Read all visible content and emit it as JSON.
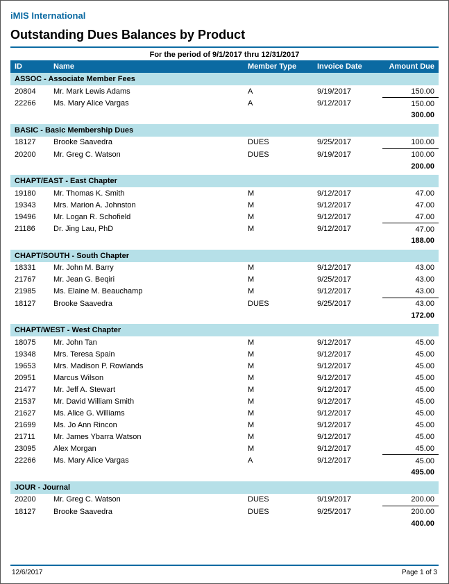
{
  "org_name": "iMIS International",
  "report_title": "Outstanding Dues Balances by Product",
  "period": "For the period of 9/1/2017 thru 12/31/2017",
  "columns": {
    "id": "ID",
    "name": "Name",
    "member_type": "Member Type",
    "invoice_date": "Invoice Date",
    "amount_due": "Amount Due"
  },
  "colors": {
    "accent": "#0b6aa2",
    "section_bg": "#b6e0e8",
    "text": "#000000",
    "background": "#ffffff"
  },
  "sections": [
    {
      "header": "ASSOC - Associate Member Fees",
      "rows": [
        {
          "id": "20804",
          "name": "Mr. Mark Lewis Adams",
          "type": "A",
          "date": "9/19/2017",
          "amount": "150.00"
        },
        {
          "id": "22266",
          "name": "Ms. Mary Alice Vargas",
          "type": "A",
          "date": "9/12/2017",
          "amount": "150.00"
        }
      ],
      "subtotal": "300.00"
    },
    {
      "header": "BASIC - Basic Membership Dues",
      "rows": [
        {
          "id": "18127",
          "name": "Brooke Saavedra",
          "type": "DUES",
          "date": "9/25/2017",
          "amount": "100.00"
        },
        {
          "id": "20200",
          "name": "Mr. Greg C. Watson",
          "type": "DUES",
          "date": "9/19/2017",
          "amount": "100.00"
        }
      ],
      "subtotal": "200.00"
    },
    {
      "header": "CHAPT/EAST - East Chapter",
      "rows": [
        {
          "id": "19180",
          "name": "Mr. Thomas K. Smith",
          "type": "M",
          "date": "9/12/2017",
          "amount": "47.00"
        },
        {
          "id": "19343",
          "name": "Mrs. Marion A. Johnston",
          "type": "M",
          "date": "9/12/2017",
          "amount": "47.00"
        },
        {
          "id": "19496",
          "name": "Mr. Logan R. Schofield",
          "type": "M",
          "date": "9/12/2017",
          "amount": "47.00"
        },
        {
          "id": "21186",
          "name": "Dr. Jing Lau, PhD",
          "type": "M",
          "date": "9/12/2017",
          "amount": "47.00"
        }
      ],
      "subtotal": "188.00"
    },
    {
      "header": "CHAPT/SOUTH - South Chapter",
      "rows": [
        {
          "id": "18331",
          "name": "Mr. John M. Barry",
          "type": "M",
          "date": "9/12/2017",
          "amount": "43.00"
        },
        {
          "id": "21767",
          "name": "Mr. Jean G. Beqiri",
          "type": "M",
          "date": "9/25/2017",
          "amount": "43.00"
        },
        {
          "id": "21985",
          "name": "Ms. Elaine M. Beauchamp",
          "type": "M",
          "date": "9/12/2017",
          "amount": "43.00"
        },
        {
          "id": "18127",
          "name": "Brooke Saavedra",
          "type": "DUES",
          "date": "9/25/2017",
          "amount": "43.00"
        }
      ],
      "subtotal": "172.00"
    },
    {
      "header": "CHAPT/WEST - West Chapter",
      "rows": [
        {
          "id": "18075",
          "name": "Mr. John  Tan",
          "type": "M",
          "date": "9/12/2017",
          "amount": "45.00"
        },
        {
          "id": "19348",
          "name": "Mrs. Teresa  Spain",
          "type": "M",
          "date": "9/12/2017",
          "amount": "45.00"
        },
        {
          "id": "19653",
          "name": "Mrs. Madison P. Rowlands",
          "type": "M",
          "date": "9/12/2017",
          "amount": "45.00"
        },
        {
          "id": "20951",
          "name": "Marcus  Wilson",
          "type": "M",
          "date": "9/12/2017",
          "amount": "45.00"
        },
        {
          "id": "21477",
          "name": "Mr. Jeff A. Stewart",
          "type": "M",
          "date": "9/12/2017",
          "amount": "45.00"
        },
        {
          "id": "21537",
          "name": "Mr. David William Smith",
          "type": "M",
          "date": "9/12/2017",
          "amount": "45.00"
        },
        {
          "id": "21627",
          "name": "Ms. Alice G. Williams",
          "type": "M",
          "date": "9/12/2017",
          "amount": "45.00"
        },
        {
          "id": "21699",
          "name": "Ms. Jo Ann Rincon",
          "type": "M",
          "date": "9/12/2017",
          "amount": "45.00"
        },
        {
          "id": "21711",
          "name": "Mr. James Ybarra Watson",
          "type": "M",
          "date": "9/12/2017",
          "amount": "45.00"
        },
        {
          "id": "23095",
          "name": "Alex Morgan",
          "type": "M",
          "date": "9/12/2017",
          "amount": "45.00"
        },
        {
          "id": "22266",
          "name": "Ms. Mary Alice Vargas",
          "type": "A",
          "date": "9/12/2017",
          "amount": "45.00"
        }
      ],
      "subtotal": "495.00"
    },
    {
      "header": "JOUR - Journal",
      "rows": [
        {
          "id": "20200",
          "name": "Mr. Greg C. Watson",
          "type": "DUES",
          "date": "9/19/2017",
          "amount": "200.00"
        },
        {
          "id": "18127",
          "name": "Brooke Saavedra",
          "type": "DUES",
          "date": "9/25/2017",
          "amount": "200.00"
        }
      ],
      "subtotal": "400.00"
    }
  ],
  "footer": {
    "date": "12/6/2017",
    "page": "Page 1 of  3"
  }
}
